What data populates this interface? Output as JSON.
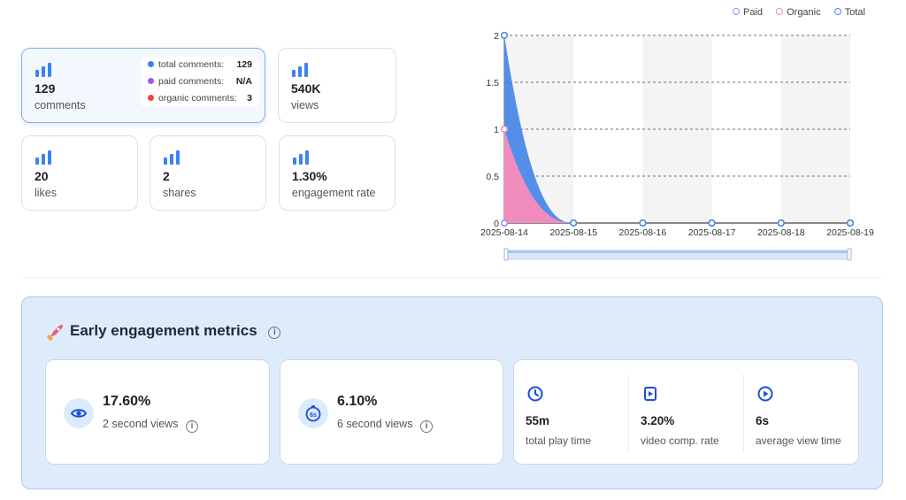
{
  "stats": {
    "comments": {
      "value": "129",
      "label": "comments"
    },
    "views": {
      "value": "540K",
      "label": "views"
    },
    "likes": {
      "value": "20",
      "label": "likes"
    },
    "shares": {
      "value": "2",
      "label": "shares"
    },
    "engagement": {
      "value": "1.30%",
      "label": "engagement rate"
    },
    "breakdown": [
      {
        "label": "total comments:",
        "value": "129",
        "color": "#3b82f6"
      },
      {
        "label": "paid comments:",
        "value": "N/A",
        "color": "#a855f7"
      },
      {
        "label": "organic comments:",
        "value": "3",
        "color": "#ef4444"
      }
    ],
    "icon": "bar-chart-icon",
    "accent": "#3b82f6"
  },
  "chart_data": {
    "type": "area",
    "legend_position": "top-right",
    "x": [
      "2025-08-14",
      "2025-08-15",
      "2025-08-16",
      "2025-08-17",
      "2025-08-18",
      "2025-08-19"
    ],
    "ylim": [
      0,
      2
    ],
    "yticks": [
      "0",
      "0.5",
      "1",
      "1.5",
      "2"
    ],
    "series": [
      {
        "name": "Paid",
        "values": [
          0,
          0,
          0,
          0,
          0,
          0
        ],
        "color": "#9b8de8"
      },
      {
        "name": "Organic",
        "values": [
          1,
          0,
          0,
          0,
          0,
          0
        ],
        "color": "#f08cbe"
      },
      {
        "name": "Total",
        "values": [
          2,
          0,
          0,
          0,
          0,
          0
        ],
        "color": "#4a89e8"
      }
    ],
    "grid": "dashed horizontal"
  },
  "early": {
    "title": "Early engagement metrics",
    "info": "i",
    "two_sec": {
      "value": "17.60%",
      "label": "2 second views",
      "icon": "eye-icon"
    },
    "six_sec": {
      "value": "6.10%",
      "label": "6 second views",
      "icon": "timer-6s-icon",
      "badge": "6s"
    },
    "play_time": {
      "value": "55m",
      "label": "total play time",
      "icon": "clock-icon"
    },
    "completion": {
      "value": "3.20%",
      "label": "video comp. rate",
      "icon": "video-icon"
    },
    "avg_view": {
      "value": "6s",
      "label": "average view time",
      "icon": "play-icon"
    },
    "icon_color": "#1d4ed8"
  }
}
